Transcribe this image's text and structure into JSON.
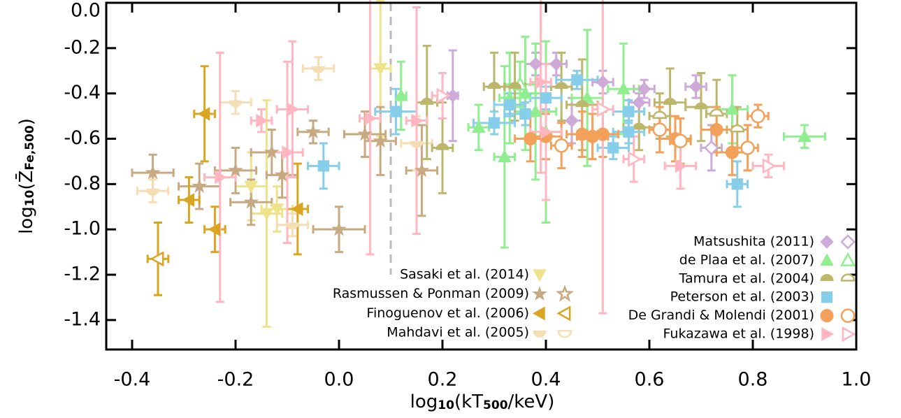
{
  "chart_data": {
    "type": "scatter",
    "xlabel": [
      "log",
      "10",
      "(kT",
      "500",
      "/keV)"
    ],
    "ylabel": [
      "log",
      "10",
      "(Z̄",
      "Fe,500",
      ")"
    ],
    "xlim": [
      -0.45,
      1.0
    ],
    "ylim": [
      -1.53,
      0.0
    ],
    "xticks": [
      -0.4,
      -0.2,
      {
        "value": 0,
        "label": "0.0"
      },
      0.2,
      0.4,
      0.6,
      0.8,
      {
        "value": 1,
        "label": "1.0"
      }
    ],
    "yticks": [
      {
        "value": 0,
        "label": "0.0"
      },
      -0.2,
      -0.4,
      -0.6,
      -0.8,
      {
        "value": -1,
        "label": "-1.0"
      },
      -1.2,
      -1.4
    ],
    "vline": {
      "x": 0.1,
      "color": "#bbbbbb"
    },
    "series": [
      {
        "name": "Sasaki et al. (2014)",
        "color": "#eee38a",
        "marker": "tri-down",
        "legend_corner": "lower-center",
        "open_in_legend": false,
        "x": [
          0.08,
          -0.14,
          -0.12,
          -0.17
        ],
        "values": [
          -0.29,
          -0.93,
          -0.91,
          -0.81
        ],
        "xerr": [
          0.02,
          0.03,
          0.03,
          0.03
        ],
        "yerr": [
          0.3,
          0.5,
          0.1,
          0.15
        ]
      },
      {
        "name": "Rasmussen & Ponman (2009)",
        "color": "#c8aa82",
        "marker": "star",
        "legend_corner": "lower-center",
        "open_in_legend": true,
        "x": [
          -0.36,
          -0.27,
          -0.2,
          -0.17,
          -0.13,
          -0.11,
          0.0,
          0.05,
          0.08,
          0.16,
          -0.05
        ],
        "values": [
          -0.75,
          -0.81,
          -0.74,
          -0.88,
          -0.66,
          -0.76,
          -1.0,
          -0.58,
          -0.61,
          -0.74,
          -0.57
        ],
        "xerr": [
          0.04,
          0.04,
          0.04,
          0.04,
          0.04,
          0.03,
          0.05,
          0.04,
          0.03,
          0.03,
          0.03
        ],
        "yerr": [
          0.08,
          0.1,
          0.1,
          0.1,
          0.1,
          0.1,
          0.1,
          0.1,
          0.15,
          0.2,
          0.05
        ]
      },
      {
        "name": "Finoguenov et al. (2006)",
        "color": "#daa520",
        "marker": "tri-left",
        "legend_corner": "lower-center",
        "open_in_legend": true,
        "x": [
          -0.35,
          -0.26,
          -0.29,
          -0.24,
          -0.08
        ],
        "values": [
          -1.13,
          -0.49,
          -0.87,
          -1.0,
          -0.91
        ],
        "xerr": [
          0.02,
          0.02,
          0.02,
          0.02,
          0.02
        ],
        "yerr": [
          0.16,
          0.21,
          0.1,
          0.1,
          0.2
        ],
        "open": [
          true,
          false,
          false,
          false,
          false
        ]
      },
      {
        "name": "Mahdavi et al. (2005)",
        "color": "#f5deb3",
        "marker": "semi-down",
        "legend_corner": "lower-center",
        "open_in_legend": true,
        "x": [
          -0.36,
          -0.2,
          -0.04,
          -0.09,
          0.15
        ],
        "values": [
          -0.83,
          -0.44,
          -0.29,
          -0.98,
          -0.62
        ],
        "xerr": [
          0.03,
          0.03,
          0.03,
          0.03,
          0.03
        ],
        "yerr": [
          0.05,
          0.05,
          0.05,
          0.05,
          0.12
        ]
      },
      {
        "name": "Matsushita (2011)",
        "color": "#cdaad7",
        "marker": "diamond",
        "legend_corner": "lower-right",
        "open_in_legend": true,
        "x": [
          0.22,
          0.38,
          0.42,
          0.51,
          0.59,
          0.69,
          0.58,
          0.45,
          0.72
        ],
        "values": [
          -0.41,
          -0.27,
          -0.27,
          -0.35,
          -0.38,
          -0.37,
          -0.44,
          -0.52,
          -0.64
        ],
        "xerr": [
          0.01,
          0.02,
          0.02,
          0.02,
          0.02,
          0.02,
          0.02,
          0.02,
          0.02
        ],
        "yerr": [
          0.2,
          0.05,
          0.05,
          0.05,
          0.04,
          0.05,
          0.04,
          0.1,
          0.1
        ],
        "open": [
          false,
          false,
          false,
          false,
          false,
          false,
          false,
          false,
          true
        ]
      },
      {
        "name": "de Plaa et al. (2007)",
        "color": "#90ee90",
        "marker": "tri-up",
        "legend_corner": "lower-right",
        "open_in_legend": true,
        "x": [
          0.12,
          0.27,
          0.33,
          0.36,
          0.38,
          0.4,
          0.48,
          0.55,
          0.76,
          0.9,
          0.35,
          0.32
        ],
        "values": [
          -0.41,
          -0.55,
          -0.42,
          -0.4,
          -0.48,
          -0.57,
          -0.42,
          -0.38,
          -0.47,
          -0.59,
          -0.36,
          -0.68
        ],
        "xerr": [
          0.01,
          0.02,
          0.02,
          0.03,
          0.04,
          0.03,
          0.03,
          0.03,
          0.03,
          0.04,
          0.03,
          0.02
        ],
        "yerr": [
          0.15,
          0.1,
          0.2,
          0.25,
          0.3,
          0.4,
          0.3,
          0.2,
          0.15,
          0.05,
          0.1,
          0.4
        ],
        "open": [
          false,
          false,
          false,
          false,
          false,
          false,
          false,
          false,
          false,
          false,
          true,
          false
        ]
      },
      {
        "name": "Tamura et al. (2004)",
        "color": "#bdb76b",
        "marker": "semi-up",
        "legend_corner": "lower-right",
        "open_in_legend": true,
        "x": [
          0.2,
          0.17,
          0.3,
          0.34,
          0.43,
          0.47,
          0.64,
          0.7,
          0.58,
          0.73,
          0.77,
          0.62
        ],
        "values": [
          -0.64,
          -0.44,
          -0.37,
          -0.37,
          -0.37,
          -0.45,
          -0.44,
          -0.46,
          -0.55,
          -0.49,
          -0.56,
          -0.5
        ],
        "xerr": [
          0.02,
          0.02,
          0.02,
          0.02,
          0.02,
          0.03,
          0.03,
          0.03,
          0.03,
          0.02,
          0.02,
          0.02
        ],
        "yerr": [
          0.2,
          0.25,
          0.15,
          0.15,
          0.15,
          0.2,
          0.15,
          0.15,
          0.1,
          0.15,
          0.1,
          0.1
        ],
        "open": [
          false,
          false,
          false,
          false,
          false,
          false,
          false,
          false,
          false,
          true,
          true,
          true
        ]
      },
      {
        "name": "Peterson et al. (2003)",
        "color": "#87ceeb",
        "marker": "square",
        "legend_corner": "lower-right",
        "open_in_legend": false,
        "x": [
          -0.03,
          0.11,
          0.3,
          0.33,
          0.36,
          0.46,
          0.56,
          0.56,
          0.53,
          0.77,
          0.4
        ],
        "values": [
          -0.72,
          -0.48,
          -0.53,
          -0.45,
          -0.49,
          -0.34,
          -0.48,
          -0.57,
          -0.64,
          -0.8,
          -0.42
        ],
        "xerr": [
          0.03,
          0.04,
          0.04,
          0.03,
          0.04,
          0.04,
          0.03,
          0.03,
          0.03,
          0.02,
          0.03
        ],
        "yerr": [
          0.1,
          0.1,
          0.05,
          0.05,
          0.05,
          0.04,
          0.05,
          0.05,
          0.05,
          0.1,
          0.05
        ]
      },
      {
        "name": "De Grandi & Molendi (2001)",
        "color": "#f2a05a",
        "marker": "circle",
        "legend_corner": "lower-right",
        "open_in_legend": true,
        "x": [
          0.37,
          0.4,
          0.47,
          0.49,
          0.51,
          0.65,
          0.73,
          0.76,
          0.43,
          0.62,
          0.66,
          0.81,
          0.79
        ],
        "values": [
          -0.6,
          -0.59,
          -0.58,
          -0.59,
          -0.58,
          -0.6,
          -0.56,
          -0.66,
          -0.63,
          -0.56,
          -0.61,
          -0.5,
          -0.64
        ],
        "xerr": [
          0.03,
          0.03,
          0.03,
          0.03,
          0.03,
          0.03,
          0.03,
          0.03,
          0.02,
          0.02,
          0.02,
          0.02,
          0.02
        ],
        "yerr": [
          0.1,
          0.1,
          0.1,
          0.1,
          0.1,
          0.1,
          0.1,
          0.1,
          0.1,
          0.1,
          0.1,
          0.05,
          0.1
        ],
        "open": [
          false,
          false,
          false,
          false,
          false,
          false,
          false,
          false,
          true,
          true,
          true,
          true,
          true
        ]
      },
      {
        "name": "Fukazawa et al. (1998)",
        "color": "#ffb6c1",
        "marker": "tri-right",
        "legend_corner": "lower-right",
        "open_in_legend": true,
        "x": [
          -0.23,
          -0.09,
          -0.1,
          -0.15,
          0.06,
          0.15,
          0.39,
          0.4,
          0.66,
          0.83,
          0.2,
          0.51,
          0.57
        ],
        "values": [
          -0.77,
          -0.47,
          -0.66,
          -0.52,
          -0.51,
          -0.52,
          -0.35,
          -0.57,
          -0.72,
          -0.72,
          -0.41,
          -0.47,
          -0.69
        ],
        "xerr": [
          0.03,
          0.03,
          0.03,
          0.02,
          0.02,
          0.02,
          0.02,
          0.03,
          0.03,
          0.03,
          0.02,
          0.02,
          0.02
        ],
        "yerr": [
          0.55,
          0.3,
          0.4,
          0.05,
          0.6,
          0.5,
          0.4,
          0.3,
          0.1,
          0.05,
          0.1,
          0.9,
          0.1
        ],
        "open": [
          false,
          false,
          false,
          false,
          false,
          false,
          false,
          false,
          false,
          true,
          true,
          true,
          true
        ]
      }
    ]
  }
}
